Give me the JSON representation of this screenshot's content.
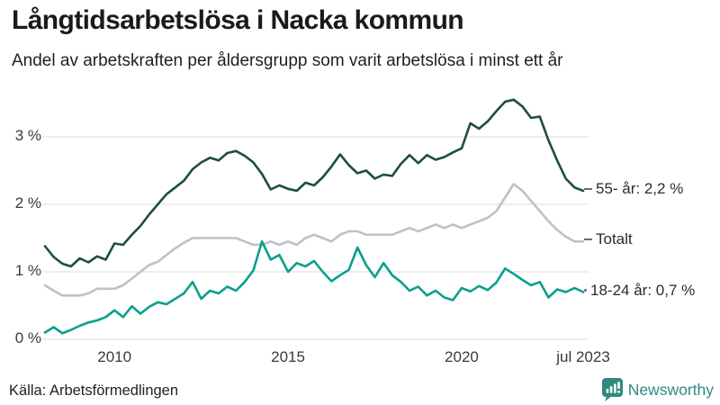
{
  "header": {
    "title": "Långtidsarbetslösa i Nacka kommun",
    "subtitle": "Andel av arbetskraften per åldersgrupp som varit arbetslösa i minst ett år"
  },
  "footer": {
    "source": "Källa: Arbetsförmedlingen",
    "brand_name": "Newsworthy",
    "brand_icon": "bar-chart-speech-bubble-icon",
    "brand_color": "#2f8a82"
  },
  "colors": {
    "background": "#ffffff",
    "grid": "#e2e2e6",
    "title_text": "#1a1a1a",
    "axis_text": "#3a3a3a"
  },
  "chart_data": {
    "type": "line",
    "title": "Långtidsarbetslösa i Nacka kommun",
    "subtitle": "Andel av arbetskraften per åldersgrupp som varit arbetslösa i minst ett år",
    "xlabel": "",
    "ylabel": "",
    "grid": "horizontal",
    "legend_position": "inline-right",
    "x_range": [
      2008,
      2023.5
    ],
    "y_range": [
      0,
      3.8
    ],
    "x_ticks": [
      {
        "label": "2010",
        "year": 2010
      },
      {
        "label": "2015",
        "year": 2015
      },
      {
        "label": "2020",
        "year": 2020
      },
      {
        "label": "jul 2023",
        "year": 2023.5
      }
    ],
    "y_ticks": [
      {
        "label": "0 %",
        "value": 0
      },
      {
        "label": "1 %",
        "value": 1
      },
      {
        "label": "2 %",
        "value": 2
      },
      {
        "label": "3 %",
        "value": 3
      }
    ],
    "x": [
      2008,
      2008.25,
      2008.5,
      2008.75,
      2009,
      2009.25,
      2009.5,
      2009.75,
      2010,
      2010.25,
      2010.5,
      2010.75,
      2011,
      2011.25,
      2011.5,
      2011.75,
      2012,
      2012.25,
      2012.5,
      2012.75,
      2013,
      2013.25,
      2013.5,
      2013.75,
      2014,
      2014.25,
      2014.5,
      2014.75,
      2015,
      2015.25,
      2015.5,
      2015.75,
      2016,
      2016.25,
      2016.5,
      2016.75,
      2017,
      2017.25,
      2017.5,
      2017.75,
      2018,
      2018.25,
      2018.5,
      2018.75,
      2019,
      2019.25,
      2019.5,
      2019.75,
      2020,
      2020.25,
      2020.5,
      2020.75,
      2021,
      2021.25,
      2021.5,
      2021.75,
      2022,
      2022.25,
      2022.5,
      2022.75,
      2023,
      2023.25,
      2023.5
    ],
    "series": [
      {
        "name": "55- år",
        "end_label": "55- år: 2,2 %",
        "end_value_text": "2,2 %",
        "color": "#1d4d44",
        "values": [
          1.38,
          1.22,
          1.12,
          1.08,
          1.2,
          1.14,
          1.23,
          1.18,
          1.42,
          1.4,
          1.55,
          1.68,
          1.85,
          2.0,
          2.15,
          2.25,
          2.35,
          2.52,
          2.62,
          2.69,
          2.65,
          2.76,
          2.79,
          2.72,
          2.62,
          2.45,
          2.22,
          2.28,
          2.23,
          2.2,
          2.32,
          2.28,
          2.4,
          2.56,
          2.74,
          2.58,
          2.46,
          2.5,
          2.38,
          2.44,
          2.42,
          2.6,
          2.73,
          2.61,
          2.73,
          2.66,
          2.7,
          2.77,
          2.83,
          3.2,
          3.12,
          3.23,
          3.38,
          3.52,
          3.55,
          3.45,
          3.28,
          3.3,
          2.95,
          2.65,
          2.38,
          2.25,
          2.2
        ]
      },
      {
        "name": "Totalt",
        "end_label": "Totalt",
        "end_value_text": "",
        "color": "#c2becc",
        "values": [
          0.8,
          0.72,
          0.65,
          0.65,
          0.65,
          0.68,
          0.75,
          0.75,
          0.75,
          0.8,
          0.9,
          1.0,
          1.1,
          1.15,
          1.25,
          1.35,
          1.43,
          1.5,
          1.5,
          1.5,
          1.5,
          1.5,
          1.5,
          1.45,
          1.4,
          1.4,
          1.45,
          1.4,
          1.45,
          1.4,
          1.5,
          1.55,
          1.5,
          1.45,
          1.55,
          1.6,
          1.6,
          1.55,
          1.55,
          1.55,
          1.55,
          1.6,
          1.65,
          1.6,
          1.65,
          1.7,
          1.65,
          1.7,
          1.65,
          1.7,
          1.75,
          1.8,
          1.9,
          2.1,
          2.3,
          2.2,
          2.05,
          1.9,
          1.75,
          1.62,
          1.52,
          1.45,
          1.45
        ]
      },
      {
        "name": "18-24 år",
        "end_label": "18-24 år: 0,7 %",
        "end_value_text": "0,7 %",
        "color": "#0b9e8e",
        "values": [
          0.1,
          0.18,
          0.09,
          0.14,
          0.2,
          0.25,
          0.28,
          0.33,
          0.43,
          0.33,
          0.49,
          0.38,
          0.48,
          0.55,
          0.52,
          0.6,
          0.68,
          0.85,
          0.6,
          0.72,
          0.68,
          0.78,
          0.72,
          0.85,
          1.02,
          1.45,
          1.18,
          1.25,
          1.0,
          1.13,
          1.08,
          1.16,
          1.0,
          0.86,
          0.95,
          1.03,
          1.36,
          1.1,
          0.92,
          1.13,
          0.95,
          0.85,
          0.72,
          0.78,
          0.65,
          0.72,
          0.62,
          0.58,
          0.76,
          0.71,
          0.79,
          0.73,
          0.84,
          1.05,
          0.97,
          0.88,
          0.8,
          0.85,
          0.62,
          0.74,
          0.7,
          0.76,
          0.7
        ]
      }
    ]
  }
}
